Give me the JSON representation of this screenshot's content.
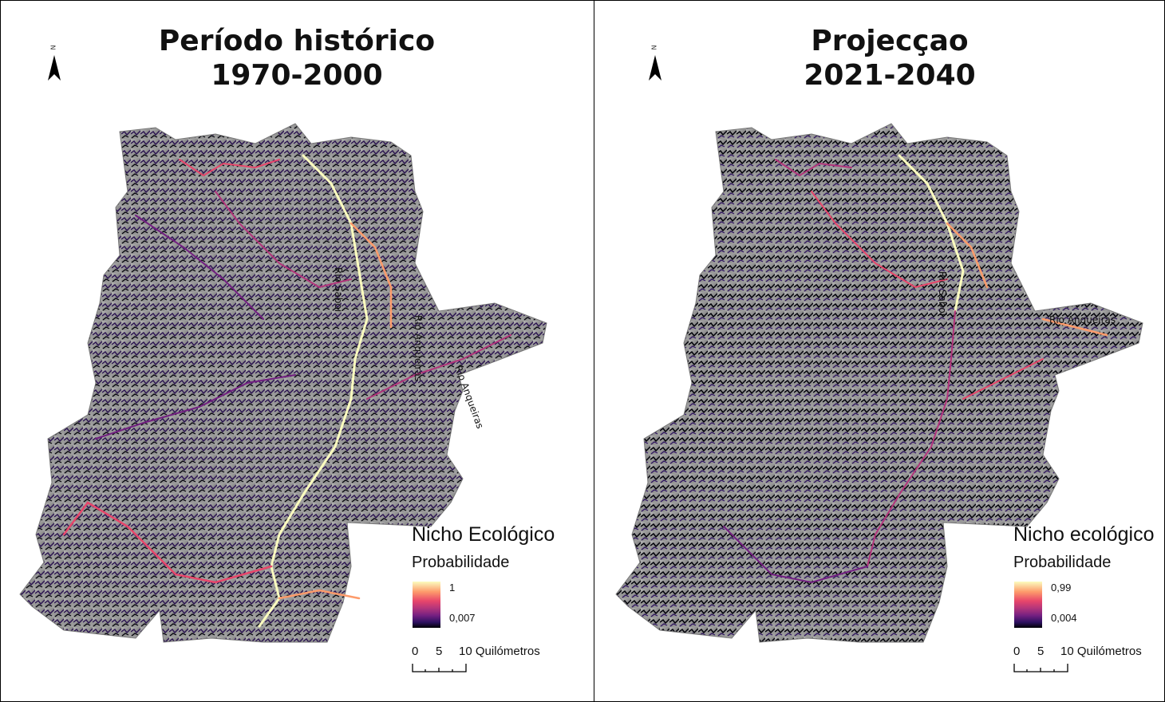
{
  "panels": {
    "left": {
      "title_line1": "Período histórico",
      "title_line2": "1970-2000",
      "north_letter": "N",
      "legend_title": "Nicho Ecológico",
      "legend_subtitle": "Probabilidade",
      "legend_max": "1",
      "legend_min": "0,007",
      "scale_0": "0",
      "scale_5": "5",
      "scale_10": "10 Quilómetros",
      "river_labels": [
        "Rio Saboi",
        "Rio Anqueiras",
        "Rio Anqueiras"
      ]
    },
    "right": {
      "title_line1": "Projecçao",
      "title_line2": "2021-2040",
      "north_letter": "N",
      "legend_title": "Nicho ecológico",
      "legend_subtitle": "Probabilidade",
      "legend_max": "0,99",
      "legend_min": "0,004",
      "scale_0": "0",
      "scale_5": "5",
      "scale_10": "10 Quilómetros",
      "river_labels": [
        "Rio Saboi",
        "Rio Anqueiras"
      ]
    }
  },
  "colors": {
    "ramp_high": "#fcfdbf",
    "ramp_mid_high": "#fd9b6b",
    "ramp_mid": "#b2357b",
    "ramp_mid_low": "#721f81",
    "ramp_low": "#000004",
    "terrain": "#9a9a9a"
  }
}
